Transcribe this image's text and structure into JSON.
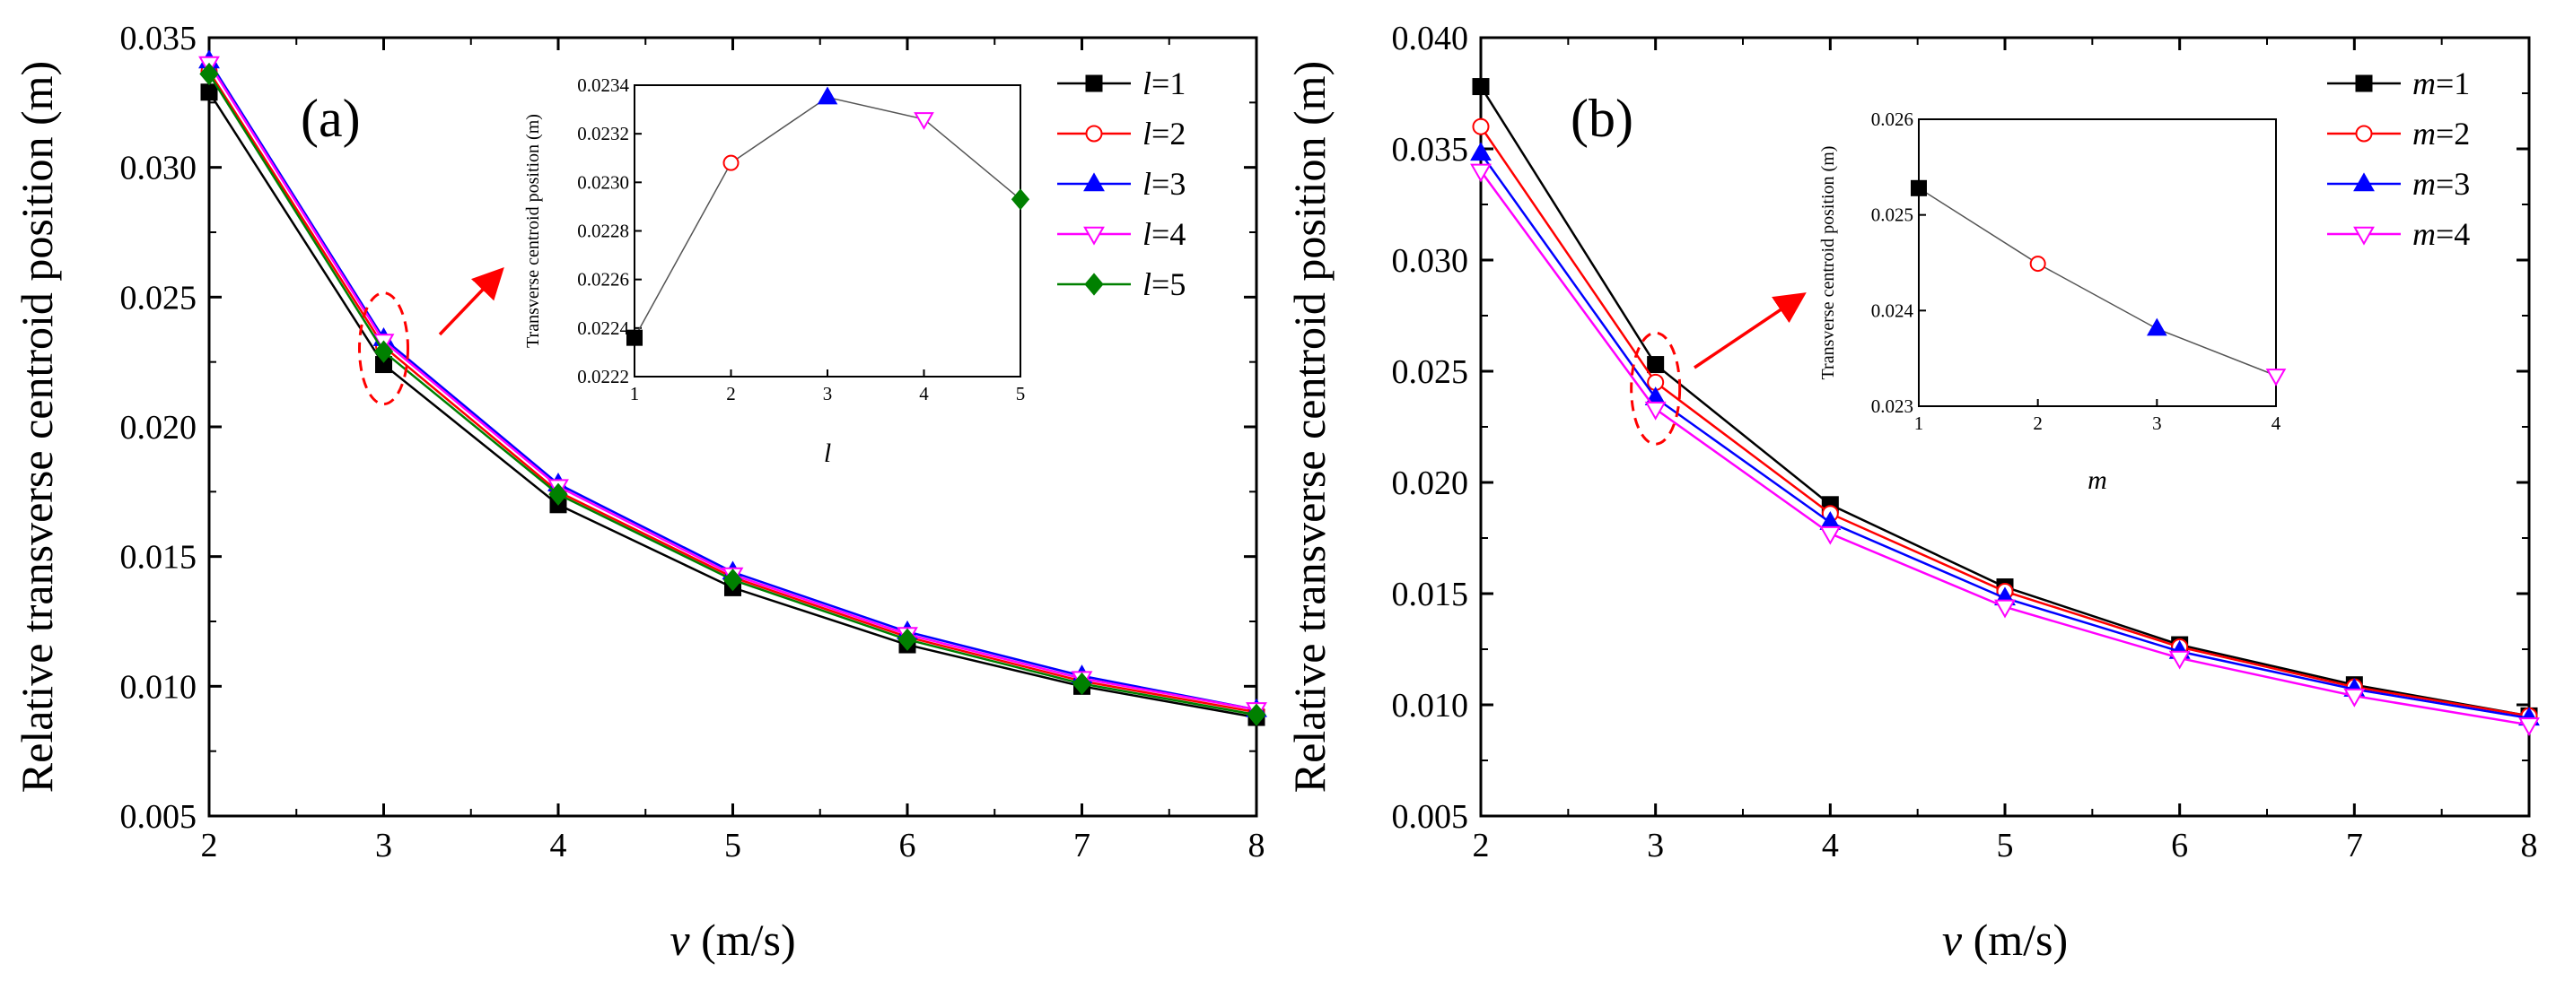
{
  "chart_data": [
    {
      "type": "line",
      "panel_label": "(a)",
      "xlabel_var": "v",
      "xlabel_unit": " (m/s)",
      "ylabel": "Relative transverse centroid position (m)",
      "x": [
        2,
        3,
        4,
        5,
        6,
        7,
        8
      ],
      "xlim": [
        2,
        8
      ],
      "ylim": [
        0.005,
        0.035
      ],
      "xticks": [
        "2",
        "3",
        "4",
        "5",
        "6",
        "7",
        "8"
      ],
      "yticks": [
        "0.005",
        "0.010",
        "0.015",
        "0.020",
        "0.025",
        "0.030",
        "0.035"
      ],
      "legend_position": "top-right",
      "series": [
        {
          "name_var": "l",
          "name_val": "=1",
          "color": "#000000",
          "marker": "square",
          "values": [
            0.0329,
            0.0224,
            0.017,
            0.0138,
            0.0116,
            0.01,
            0.0088
          ]
        },
        {
          "name_var": "l",
          "name_val": "=2",
          "color": "#ff0000",
          "marker": "circle-open",
          "values": [
            0.0337,
            0.0231,
            0.0175,
            0.0142,
            0.0119,
            0.0102,
            0.009
          ]
        },
        {
          "name_var": "l",
          "name_val": "=3",
          "color": "#0000ff",
          "marker": "triangle-up",
          "values": [
            0.0341,
            0.0234,
            0.0178,
            0.0144,
            0.0121,
            0.0104,
            0.0091
          ]
        },
        {
          "name_var": "l",
          "name_val": "=4",
          "color": "#ff00ff",
          "marker": "triangle-down-open",
          "values": [
            0.034,
            0.0233,
            0.0177,
            0.0143,
            0.012,
            0.0103,
            0.0091
          ]
        },
        {
          "name_var": "l",
          "name_val": "=5",
          "color": "#008000",
          "marker": "diamond",
          "values": [
            0.0336,
            0.0229,
            0.0174,
            0.0141,
            0.0118,
            0.0101,
            0.0089
          ]
        }
      ],
      "highlight_x": 3,
      "inset": {
        "type": "line",
        "xlabel": "l",
        "ylabel": "Transverse centroid position (m)",
        "xlim": [
          1,
          5
        ],
        "ylim": [
          0.0222,
          0.0234
        ],
        "xticks": [
          "1",
          "2",
          "3",
          "4",
          "5"
        ],
        "yticks": [
          "0.0222",
          "0.0224",
          "0.0226",
          "0.0228",
          "0.0230",
          "0.0232",
          "0.0234"
        ],
        "x": [
          1,
          2,
          3,
          4,
          5
        ],
        "values": [
          0.02236,
          0.02308,
          0.02335,
          0.02326,
          0.02293
        ],
        "markers": [
          "square",
          "circle-open",
          "triangle-up",
          "triangle-down-open",
          "diamond"
        ],
        "colors": [
          "#000000",
          "#ff0000",
          "#0000ff",
          "#ff00ff",
          "#008000"
        ]
      }
    },
    {
      "type": "line",
      "panel_label": "(b)",
      "xlabel_var": "v",
      "xlabel_unit": " (m/s)",
      "ylabel": "Relative transverse centroid position (m)",
      "x": [
        2,
        3,
        4,
        5,
        6,
        7,
        8
      ],
      "xlim": [
        2,
        8
      ],
      "ylim": [
        0.005,
        0.04
      ],
      "xticks": [
        "2",
        "3",
        "4",
        "5",
        "6",
        "7",
        "8"
      ],
      "yticks": [
        "0.005",
        "0.010",
        "0.015",
        "0.020",
        "0.025",
        "0.030",
        "0.035",
        "0.040"
      ],
      "legend_position": "top-right",
      "series": [
        {
          "name_var": "m",
          "name_val": "=1",
          "color": "#000000",
          "marker": "square",
          "values": [
            0.0378,
            0.0253,
            0.019,
            0.0153,
            0.0127,
            0.0109,
            0.0095
          ]
        },
        {
          "name_var": "m",
          "name_val": "=2",
          "color": "#ff0000",
          "marker": "circle-open",
          "values": [
            0.036,
            0.0245,
            0.0186,
            0.0151,
            0.0126,
            0.0108,
            0.0095
          ]
        },
        {
          "name_var": "m",
          "name_val": "=3",
          "color": "#0000ff",
          "marker": "triangle-up",
          "values": [
            0.0348,
            0.0238,
            0.0182,
            0.0148,
            0.0124,
            0.0107,
            0.0094
          ]
        },
        {
          "name_var": "m",
          "name_val": "=4",
          "color": "#ff00ff",
          "marker": "triangle-down-open",
          "values": [
            0.034,
            0.0233,
            0.0177,
            0.0144,
            0.0121,
            0.0104,
            0.0091
          ]
        }
      ],
      "highlight_x": 3,
      "inset": {
        "type": "line",
        "xlabel": "m",
        "ylabel": "Transverse centroid position (m)",
        "xlim": [
          1,
          4
        ],
        "ylim": [
          0.023,
          0.026
        ],
        "xticks": [
          "1",
          "2",
          "3",
          "4"
        ],
        "yticks": [
          "0.023",
          "0.024",
          "0.025",
          "0.026"
        ],
        "x": [
          1,
          2,
          3,
          4
        ],
        "values": [
          0.02528,
          0.02449,
          0.02381,
          0.02332
        ],
        "markers": [
          "square",
          "circle-open",
          "triangle-up",
          "triangle-down-open"
        ],
        "colors": [
          "#000000",
          "#ff0000",
          "#0000ff",
          "#ff00ff"
        ]
      }
    }
  ]
}
